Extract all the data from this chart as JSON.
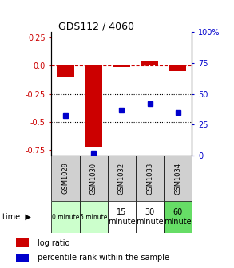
{
  "title": "GDS112 / 4060",
  "samples": [
    "GSM1029",
    "GSM1030",
    "GSM1032",
    "GSM1033",
    "GSM1034"
  ],
  "log_ratio": [
    -0.1,
    -0.72,
    -0.01,
    0.04,
    -0.05
  ],
  "percentile": [
    32,
    2,
    37,
    42,
    35
  ],
  "time_labels": [
    "0 minute",
    "5 minute",
    "15\nminute",
    "30\nminute",
    "60\nminute"
  ],
  "time_bg_colors": [
    "#ccffcc",
    "#ccffcc",
    "#ffffff",
    "#ffffff",
    "#66dd66"
  ],
  "ylim_left": [
    -0.8,
    0.3
  ],
  "ylim_right": [
    0,
    100
  ],
  "yticks_left": [
    0.25,
    0.0,
    -0.25,
    -0.5,
    -0.75
  ],
  "yticks_right": [
    100,
    75,
    50,
    25,
    0
  ],
  "ytick_labels_right": [
    "100%",
    "75",
    "50",
    "25",
    "0"
  ],
  "bar_color": "#cc0000",
  "square_color": "#0000cc",
  "hline_y": [
    0.0,
    -0.25,
    -0.5
  ],
  "hline_styles": [
    "--",
    ":",
    ":"
  ],
  "hline_colors": [
    "#cc0000",
    "black",
    "black"
  ],
  "legend_log_label": "log ratio",
  "legend_pct_label": "percentile rank within the sample",
  "sample_bg_color": "#d0d0d0",
  "title_color": "black",
  "left_tick_color": "#cc0000",
  "right_tick_color": "#0000cc"
}
